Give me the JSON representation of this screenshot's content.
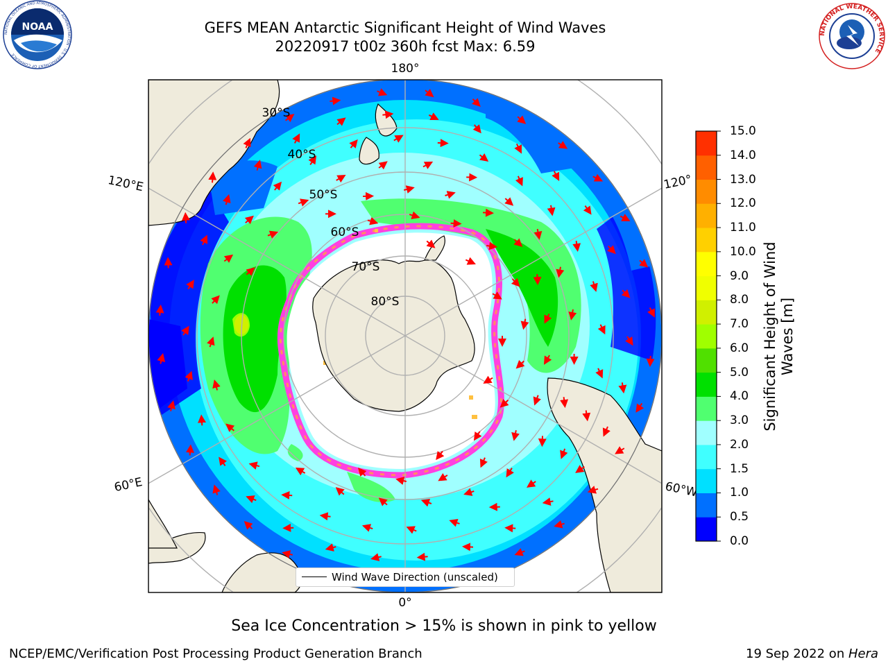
{
  "header": {
    "title_line1": "GEFS MEAN Antarctic Significant Height of Wind Waves",
    "title_line2": "20220917 t00z 360h fcst   Max: 6.59"
  },
  "logos": {
    "noaa": {
      "text": "NOAA",
      "ring_text": "NATIONAL OCEANIC AND ATMOSPHERIC ADMINISTRATION · U.S. DEPARTMENT OF COMMERCE",
      "icon": "noaa-seal-icon"
    },
    "nws": {
      "ring_text": "NATIONAL WEATHER SERVICE",
      "icon": "nws-seal-icon"
    }
  },
  "map": {
    "projection": "south-polar-stereographic",
    "longitude_labels": {
      "top": "180°",
      "bottom": "0°",
      "left_upper": "120°E",
      "left_lower": "60°E",
      "right_upper": "120°",
      "right_lower": "60°W"
    },
    "latitude_labels": [
      "30°S",
      "40°S",
      "50°S",
      "60°S",
      "70°S",
      "80°S"
    ],
    "land_color": "#efebdc",
    "ocean_max_color": "#ffff00"
  },
  "colorbar": {
    "title": "Significant Height of Wind Waves [m]",
    "ticks": [
      "0.0",
      "0.5",
      "1.0",
      "1.5",
      "2.0",
      "3.0",
      "4.0",
      "5.0",
      "6.0",
      "7.0",
      "8.0",
      "9.0",
      "10.0",
      "11.0",
      "12.0",
      "13.0",
      "14.0",
      "15.0"
    ],
    "colors": [
      "#0000ff",
      "#0070ff",
      "#00e0ff",
      "#40ffff",
      "#a0ffff",
      "#50ff70",
      "#00e000",
      "#50e000",
      "#a0ff00",
      "#d0f000",
      "#f0ff00",
      "#ffff00",
      "#ffd000",
      "#ffb000",
      "#ff8c00",
      "#ff6000",
      "#ff3000",
      "#ff0000"
    ]
  },
  "legend": {
    "label": "Wind Wave Direction (unscaled)",
    "arrow_color": "#ff0000"
  },
  "notes": {
    "sea_ice": "Sea Ice Concentration > 15% is shown in pink to yellow",
    "footer_left": "NCEP/EMC/Verification Post Processing Product Generation Branch",
    "footer_date": "19 Sep 2022 on ",
    "footer_host": "Hera"
  }
}
